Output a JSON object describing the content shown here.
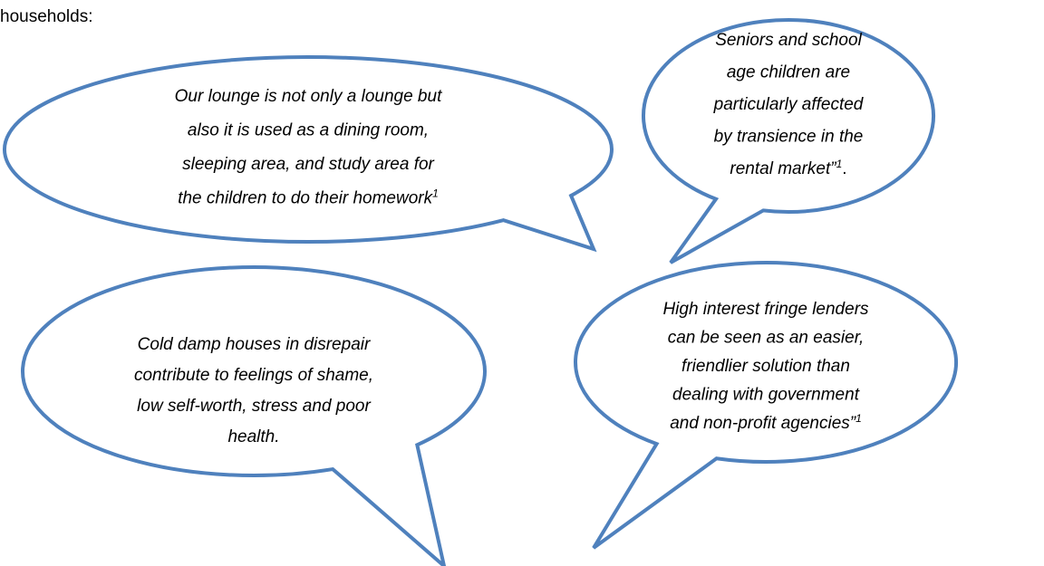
{
  "intro": "households:",
  "bubbles": [
    {
      "lines": [
        {
          "text": "Our lounge is not only a lounge but"
        },
        {
          "text": "also it is used as a dining room,"
        },
        {
          "text": "sleeping area, and study area for"
        },
        {
          "text": "the children to do their homework",
          "sup": "1"
        }
      ]
    },
    {
      "lines": [
        {
          "text": "Seniors and school"
        },
        {
          "text": "age children are"
        },
        {
          "text": "particularly affected"
        },
        {
          "text": "by transience in the"
        },
        {
          "text": "rental market”",
          "sup": "1",
          "after": "."
        }
      ]
    },
    {
      "lines": [
        {
          "text": "Cold damp houses in disrepair"
        },
        {
          "text": "contribute to feelings of shame,"
        },
        {
          "text": "low self-worth, stress and poor"
        },
        {
          "text": "health."
        }
      ]
    },
    {
      "lines": [
        {
          "text": "High interest fringe lenders"
        },
        {
          "text": "can be seen as an easier,"
        },
        {
          "text": "friendlier solution than"
        },
        {
          "text": "dealing with government"
        },
        {
          "text": "and non-profit agencies”",
          "sup": "1"
        }
      ]
    }
  ]
}
